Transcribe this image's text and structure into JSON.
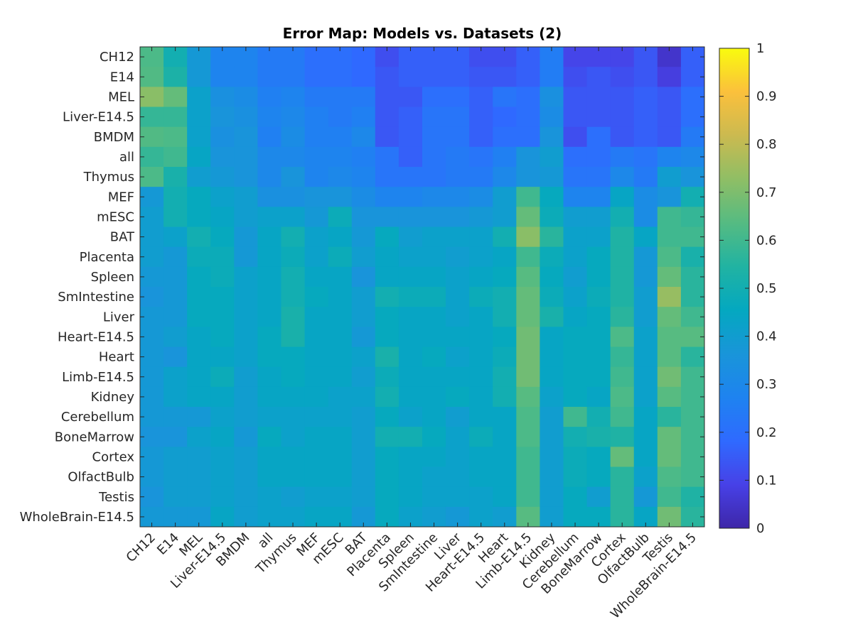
{
  "chart_data": {
    "type": "heatmap",
    "title": "Error Map: Models vs. Datasets (2)",
    "xlabel": "",
    "ylabel": "",
    "rows": [
      "CH12",
      "E14",
      "MEL",
      "Liver-E14.5",
      "BMDM",
      "all",
      "Thymus",
      "MEF",
      "mESC",
      "BAT",
      "Placenta",
      "Spleen",
      "SmIntestine",
      "Liver",
      "Heart-E14.5",
      "Heart",
      "Limb-E14.5",
      "Kidney",
      "Cerebellum",
      "BoneMarrow",
      "Cortex",
      "OlfactBulb",
      "Testis",
      "WholeBrain-E14.5"
    ],
    "columns": [
      "CH12",
      "E14",
      "MEL",
      "Liver-E14.5",
      "BMDM",
      "all",
      "Thymus",
      "MEF",
      "mESC",
      "BAT",
      "Placenta",
      "Spleen",
      "SmIntestine",
      "Liver",
      "Heart-E14.5",
      "Heart",
      "Limb-E14.5",
      "Kidney",
      "Cerebellum",
      "BoneMarrow",
      "Cortex",
      "OlfactBulb",
      "Testis",
      "WholeBrain-E14.5"
    ],
    "values": [
      [
        0.62,
        0.5,
        0.38,
        0.28,
        0.28,
        0.24,
        0.24,
        0.2,
        0.2,
        0.18,
        0.12,
        0.16,
        0.16,
        0.16,
        0.12,
        0.12,
        0.16,
        0.25,
        0.1,
        0.1,
        0.1,
        0.14,
        0.05,
        0.16
      ],
      [
        0.63,
        0.53,
        0.38,
        0.28,
        0.28,
        0.24,
        0.24,
        0.2,
        0.2,
        0.18,
        0.14,
        0.16,
        0.16,
        0.16,
        0.14,
        0.14,
        0.16,
        0.25,
        0.12,
        0.14,
        0.12,
        0.14,
        0.08,
        0.16
      ],
      [
        0.72,
        0.66,
        0.42,
        0.34,
        0.32,
        0.26,
        0.28,
        0.24,
        0.24,
        0.24,
        0.14,
        0.14,
        0.2,
        0.2,
        0.16,
        0.22,
        0.2,
        0.34,
        0.14,
        0.14,
        0.14,
        0.16,
        0.14,
        0.2
      ],
      [
        0.58,
        0.58,
        0.42,
        0.36,
        0.34,
        0.28,
        0.3,
        0.26,
        0.24,
        0.26,
        0.14,
        0.16,
        0.22,
        0.22,
        0.16,
        0.18,
        0.2,
        0.32,
        0.14,
        0.14,
        0.14,
        0.16,
        0.14,
        0.2
      ],
      [
        0.63,
        0.62,
        0.42,
        0.34,
        0.36,
        0.26,
        0.32,
        0.26,
        0.26,
        0.3,
        0.14,
        0.16,
        0.22,
        0.22,
        0.16,
        0.2,
        0.2,
        0.36,
        0.12,
        0.2,
        0.14,
        0.16,
        0.14,
        0.24
      ],
      [
        0.58,
        0.6,
        0.44,
        0.36,
        0.36,
        0.3,
        0.3,
        0.28,
        0.28,
        0.26,
        0.22,
        0.16,
        0.22,
        0.24,
        0.22,
        0.26,
        0.36,
        0.4,
        0.2,
        0.2,
        0.24,
        0.22,
        0.28,
        0.3
      ],
      [
        0.62,
        0.52,
        0.4,
        0.38,
        0.36,
        0.3,
        0.36,
        0.28,
        0.3,
        0.28,
        0.22,
        0.22,
        0.22,
        0.24,
        0.24,
        0.3,
        0.36,
        0.38,
        0.22,
        0.22,
        0.3,
        0.24,
        0.4,
        0.36
      ],
      [
        0.38,
        0.5,
        0.46,
        0.42,
        0.4,
        0.34,
        0.34,
        0.36,
        0.36,
        0.32,
        0.28,
        0.28,
        0.3,
        0.3,
        0.32,
        0.4,
        0.6,
        0.46,
        0.28,
        0.28,
        0.44,
        0.32,
        0.36,
        0.5
      ],
      [
        0.4,
        0.5,
        0.46,
        0.44,
        0.4,
        0.42,
        0.42,
        0.38,
        0.48,
        0.36,
        0.36,
        0.36,
        0.36,
        0.36,
        0.38,
        0.4,
        0.66,
        0.48,
        0.4,
        0.4,
        0.5,
        0.32,
        0.6,
        0.58
      ],
      [
        0.4,
        0.42,
        0.5,
        0.46,
        0.38,
        0.44,
        0.5,
        0.42,
        0.44,
        0.38,
        0.46,
        0.4,
        0.42,
        0.42,
        0.42,
        0.5,
        0.72,
        0.56,
        0.42,
        0.42,
        0.54,
        0.44,
        0.6,
        0.6
      ],
      [
        0.4,
        0.38,
        0.48,
        0.48,
        0.38,
        0.44,
        0.48,
        0.42,
        0.48,
        0.4,
        0.44,
        0.42,
        0.42,
        0.4,
        0.42,
        0.44,
        0.6,
        0.48,
        0.42,
        0.46,
        0.54,
        0.38,
        0.62,
        0.52
      ],
      [
        0.38,
        0.38,
        0.46,
        0.48,
        0.42,
        0.44,
        0.5,
        0.44,
        0.44,
        0.36,
        0.44,
        0.44,
        0.44,
        0.42,
        0.44,
        0.46,
        0.64,
        0.46,
        0.4,
        0.46,
        0.54,
        0.38,
        0.66,
        0.56
      ],
      [
        0.36,
        0.38,
        0.46,
        0.46,
        0.42,
        0.44,
        0.5,
        0.46,
        0.44,
        0.4,
        0.5,
        0.48,
        0.48,
        0.42,
        0.48,
        0.5,
        0.66,
        0.48,
        0.42,
        0.48,
        0.54,
        0.4,
        0.74,
        0.56
      ],
      [
        0.38,
        0.38,
        0.46,
        0.46,
        0.42,
        0.44,
        0.52,
        0.44,
        0.44,
        0.4,
        0.46,
        0.44,
        0.44,
        0.42,
        0.44,
        0.5,
        0.66,
        0.52,
        0.44,
        0.46,
        0.56,
        0.4,
        0.66,
        0.6
      ],
      [
        0.38,
        0.4,
        0.44,
        0.46,
        0.42,
        0.46,
        0.52,
        0.44,
        0.44,
        0.38,
        0.46,
        0.44,
        0.44,
        0.44,
        0.44,
        0.46,
        0.68,
        0.44,
        0.46,
        0.46,
        0.62,
        0.42,
        0.64,
        0.64
      ],
      [
        0.38,
        0.36,
        0.44,
        0.44,
        0.42,
        0.46,
        0.46,
        0.44,
        0.44,
        0.42,
        0.52,
        0.44,
        0.46,
        0.42,
        0.44,
        0.48,
        0.68,
        0.44,
        0.46,
        0.46,
        0.58,
        0.42,
        0.64,
        0.56
      ],
      [
        0.38,
        0.42,
        0.44,
        0.48,
        0.4,
        0.44,
        0.46,
        0.44,
        0.44,
        0.4,
        0.48,
        0.44,
        0.44,
        0.44,
        0.44,
        0.5,
        0.68,
        0.44,
        0.46,
        0.46,
        0.6,
        0.42,
        0.68,
        0.6
      ],
      [
        0.38,
        0.42,
        0.44,
        0.44,
        0.4,
        0.44,
        0.44,
        0.44,
        0.42,
        0.42,
        0.5,
        0.44,
        0.44,
        0.46,
        0.44,
        0.5,
        0.64,
        0.42,
        0.46,
        0.44,
        0.62,
        0.42,
        0.64,
        0.6
      ],
      [
        0.38,
        0.38,
        0.38,
        0.42,
        0.4,
        0.42,
        0.42,
        0.42,
        0.42,
        0.4,
        0.46,
        0.42,
        0.44,
        0.4,
        0.44,
        0.44,
        0.62,
        0.4,
        0.6,
        0.5,
        0.6,
        0.44,
        0.56,
        0.6
      ],
      [
        0.36,
        0.36,
        0.42,
        0.44,
        0.38,
        0.46,
        0.42,
        0.44,
        0.44,
        0.4,
        0.5,
        0.5,
        0.46,
        0.42,
        0.48,
        0.44,
        0.62,
        0.4,
        0.5,
        0.52,
        0.54,
        0.44,
        0.66,
        0.6
      ],
      [
        0.38,
        0.4,
        0.4,
        0.42,
        0.4,
        0.44,
        0.44,
        0.44,
        0.44,
        0.4,
        0.46,
        0.44,
        0.44,
        0.42,
        0.44,
        0.44,
        0.6,
        0.4,
        0.48,
        0.46,
        0.66,
        0.44,
        0.66,
        0.6
      ],
      [
        0.38,
        0.4,
        0.4,
        0.42,
        0.4,
        0.44,
        0.44,
        0.44,
        0.44,
        0.4,
        0.46,
        0.44,
        0.42,
        0.42,
        0.44,
        0.44,
        0.6,
        0.4,
        0.48,
        0.46,
        0.56,
        0.42,
        0.62,
        0.6
      ],
      [
        0.36,
        0.4,
        0.4,
        0.42,
        0.4,
        0.42,
        0.4,
        0.42,
        0.42,
        0.4,
        0.46,
        0.44,
        0.42,
        0.42,
        0.42,
        0.44,
        0.6,
        0.4,
        0.46,
        0.4,
        0.56,
        0.38,
        0.6,
        0.54
      ],
      [
        0.38,
        0.38,
        0.38,
        0.44,
        0.4,
        0.42,
        0.42,
        0.44,
        0.44,
        0.38,
        0.46,
        0.42,
        0.4,
        0.38,
        0.42,
        0.4,
        0.64,
        0.4,
        0.46,
        0.46,
        0.56,
        0.44,
        0.68,
        0.56
      ]
    ],
    "colorbar": {
      "range": [
        0,
        1
      ],
      "ticks": [
        "0",
        "0.1",
        "0.2",
        "0.3",
        "0.4",
        "0.5",
        "0.6",
        "0.7",
        "0.8",
        "0.9",
        "1"
      ],
      "colormap": [
        "#3e26a8",
        "#4741e7",
        "#2f6aff",
        "#1e83f0",
        "#1995d9",
        "#04a8c0",
        "#21b3a2",
        "#55bb82",
        "#8fbe65",
        "#cbba50",
        "#fbc03c",
        "#f9fb0e"
      ]
    },
    "grid": false,
    "legend": "colorbar-right"
  }
}
